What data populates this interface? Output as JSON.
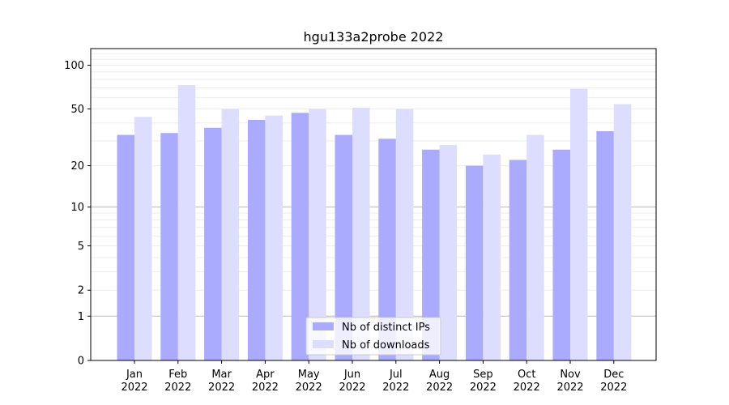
{
  "chart_data": {
    "type": "bar",
    "title": "hgu133a2probe 2022",
    "xlabel": "",
    "ylabel": "",
    "scale": "log1p",
    "ylim": [
      0,
      130
    ],
    "yticks": [
      0,
      1,
      2,
      5,
      10,
      20,
      50,
      100
    ],
    "ytick_labels": [
      "0",
      "1",
      "2",
      "5",
      "10",
      "20",
      "50",
      "100"
    ],
    "major_gridlines": [
      1,
      10
    ],
    "categories": [
      [
        "Jan",
        "2022"
      ],
      [
        "Feb",
        "2022"
      ],
      [
        "Mar",
        "2022"
      ],
      [
        "Apr",
        "2022"
      ],
      [
        "May",
        "2022"
      ],
      [
        "Jun",
        "2022"
      ],
      [
        "Jul",
        "2022"
      ],
      [
        "Aug",
        "2022"
      ],
      [
        "Sep",
        "2022"
      ],
      [
        "Oct",
        "2022"
      ],
      [
        "Nov",
        "2022"
      ],
      [
        "Dec",
        "2022"
      ]
    ],
    "series": [
      {
        "name": "Nb of distinct IPs",
        "color": "#aaaaff",
        "values": [
          33,
          34,
          37,
          42,
          47,
          33,
          31,
          26,
          20,
          22,
          26,
          35
        ]
      },
      {
        "name": "Nb of downloads",
        "color": "#ddddff",
        "values": [
          44,
          73,
          50,
          45,
          50,
          51,
          50,
          28,
          24,
          33,
          69,
          54
        ]
      }
    ],
    "legend": {
      "position": "lower-center"
    },
    "grid": true
  }
}
